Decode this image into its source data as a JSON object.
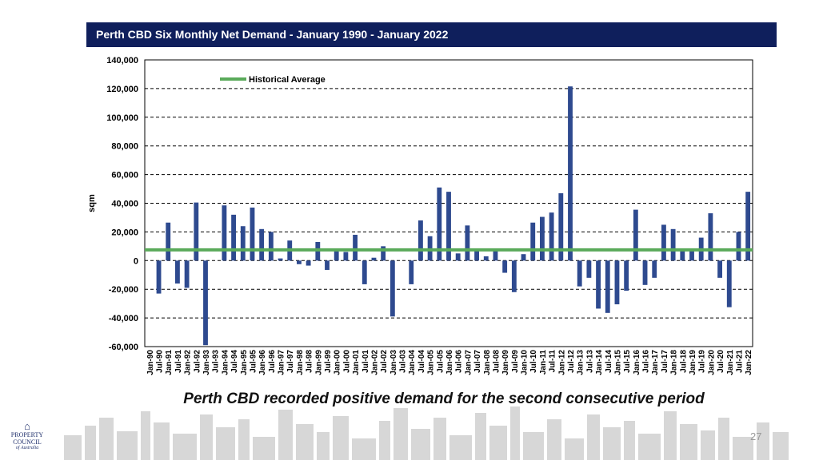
{
  "slide": {
    "title": "Perth CBD Six Monthly Net Demand - January 1990 - January 2022",
    "caption": "Perth CBD recorded positive demand for the second consecutive period",
    "page_number": "27",
    "logo": {
      "line1": "PROPERTY",
      "line2": "COUNCIL",
      "line3": "of Australia"
    }
  },
  "chart_data": {
    "type": "bar",
    "title": "Perth CBD Six Monthly Net Demand - January 1990 - January 2022",
    "ylabel": "sqm",
    "xlabel": "",
    "ylim": [
      -60000,
      140000
    ],
    "yticks": [
      -60000,
      -40000,
      -20000,
      0,
      20000,
      40000,
      60000,
      80000,
      100000,
      120000,
      140000
    ],
    "ytick_labels": [
      "-60,000",
      "-40,000",
      "-20,000",
      "0",
      "20,000",
      "40,000",
      "60,000",
      "80,000",
      "100,000",
      "120,000",
      "140,000"
    ],
    "grid": "horizontal-dashed",
    "bar_color": "#2e4a8f",
    "average_color": "#5aaa5a",
    "legend": {
      "label": "Historical Average",
      "placement": "top-left"
    },
    "categories": [
      "Jan-90",
      "Jul-90",
      "Jan-91",
      "Jul-91",
      "Jan-92",
      "Jul-92",
      "Jan-93",
      "Jul-93",
      "Jan-94",
      "Jul-94",
      "Jan-95",
      "Jul-95",
      "Jan-96",
      "Jul-96",
      "Jan-97",
      "Jul-97",
      "Jan-98",
      "Jul-98",
      "Jan-99",
      "Jul-99",
      "Jan-00",
      "Jul-00",
      "Jan-01",
      "Jul-01",
      "Jan-02",
      "Jul-02",
      "Jan-03",
      "Jul-03",
      "Jan-04",
      "Jul-04",
      "Jan-05",
      "Jul-05",
      "Jan-06",
      "Jul-06",
      "Jan-07",
      "Jul-07",
      "Jan-08",
      "Jul-08",
      "Jan-09",
      "Jul-09",
      "Jan-10",
      "Jul-10",
      "Jan-11",
      "Jul-11",
      "Jan-12",
      "Jul-12",
      "Jan-13",
      "Jul-13",
      "Jan-14",
      "Jul-14",
      "Jan-15",
      "Jul-15",
      "Jan-16",
      "Jul-16",
      "Jan-17",
      "Jul-17",
      "Jan-18",
      "Jul-18",
      "Jan-19",
      "Jul-19",
      "Jan-20",
      "Jul-20",
      "Jan-21",
      "Jul-21",
      "Jan-22"
    ],
    "series": [
      {
        "name": "",
        "values": [
          0,
          -23000,
          26500,
          -16000,
          -19000,
          40500,
          -59000,
          0,
          38500,
          32000,
          24000,
          37000,
          22000,
          20000,
          1500,
          14000,
          -2500,
          -3500,
          13000,
          -6500,
          6500,
          6000,
          18000,
          -16500,
          2000,
          10000,
          -39000,
          0,
          -16500,
          28000,
          17000,
          51000,
          48000,
          5000,
          24500,
          7000,
          3000,
          7500,
          -8500,
          -22000,
          4500,
          26500,
          30500,
          33500,
          47000,
          121500,
          -18000,
          -12000,
          -33500,
          -36500,
          -30500,
          -21000,
          35500,
          -17000,
          -12000,
          25000,
          22000,
          7000,
          7500,
          16000,
          33000,
          -12000,
          -32500,
          20000,
          48000
        ]
      },
      {
        "name": "Historical Average",
        "type": "line",
        "value": 7500
      }
    ]
  }
}
